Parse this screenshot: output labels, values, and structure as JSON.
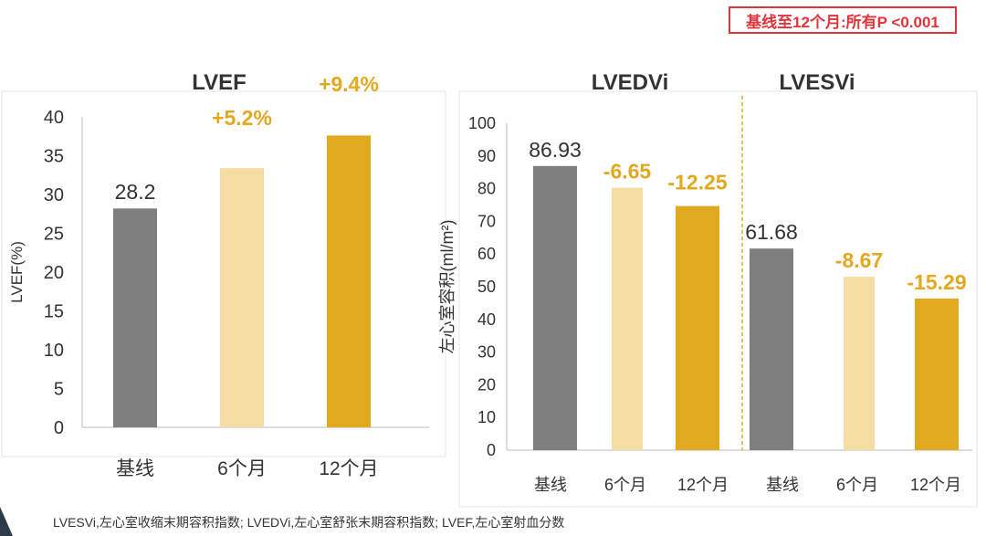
{
  "note": "基线至12个月:所有P <0.001",
  "footnote": "LVESVi,左心室收缩末期容积指数; LVEDVi,左心室舒张末期容积指数; LVEF,左心室射血分数",
  "colors": {
    "baseline": "#7f7f7f",
    "month6": "#f5dca2",
    "month12": "#e1a91f",
    "change_label": "#e3a81e",
    "divider": "#e1a91f"
  },
  "chart_data": [
    {
      "type": "bar",
      "title": "LVEF",
      "ylabel": "LVEF(%)",
      "ylim": [
        0,
        40
      ],
      "yticks": [
        0,
        5,
        10,
        15,
        20,
        25,
        30,
        35,
        40
      ],
      "categories": [
        "基线",
        "6个月",
        "12个月"
      ],
      "values": [
        28.2,
        33.4,
        37.6
      ],
      "data_labels": [
        "28.2",
        "+5.2%",
        "+9.4%"
      ],
      "grid": false
    },
    {
      "type": "bar",
      "ylabel": "左心室容积(ml/m²)",
      "ylim": [
        0,
        100
      ],
      "yticks": [
        0,
        10,
        20,
        30,
        40,
        50,
        60,
        70,
        80,
        90,
        100
      ],
      "groups": [
        {
          "title": "LVEDVi",
          "categories": [
            "基线",
            "6个月",
            "12个月"
          ],
          "values": [
            86.93,
            80.28,
            74.68
          ],
          "data_labels": [
            "86.93",
            "-6.65",
            "-12.25"
          ]
        },
        {
          "title": "LVESVi",
          "categories": [
            "基线",
            "6个月",
            "12个月"
          ],
          "values": [
            61.68,
            53.01,
            46.39
          ],
          "data_labels": [
            "61.68",
            "-8.67",
            "-15.29"
          ]
        }
      ],
      "grid": false
    }
  ]
}
